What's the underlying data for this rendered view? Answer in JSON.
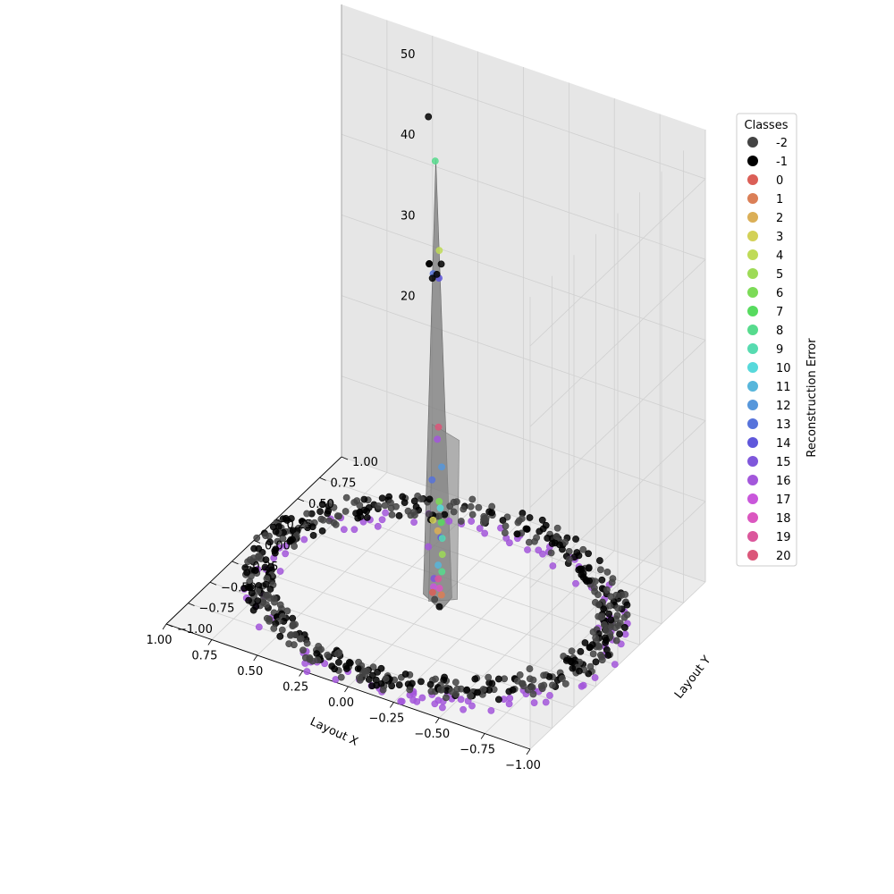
{
  "chart_data": {
    "type": "scatter3d",
    "xlabel": "Layout X",
    "ylabel": "Layout Y",
    "zlabel": "Reconstruction Error",
    "xlim": [
      -1.0,
      1.0
    ],
    "ylim": [
      -1.0,
      1.0
    ],
    "zlim": [
      0,
      60
    ],
    "x_ticks": [
      "−1.00",
      "−0.75",
      "−0.50",
      "−0.25",
      "0.00",
      "0.25",
      "0.50",
      "0.75",
      "1.00"
    ],
    "y_ticks": [
      "−1.00",
      "−0.75",
      "−0.50",
      "−0.25",
      "0.00",
      "0.25",
      "0.50",
      "0.75",
      "1.00"
    ],
    "z_ticks": [
      "20",
      "30",
      "40",
      "50"
    ],
    "grid": true,
    "legend": {
      "title": "Classes",
      "placement": "right",
      "entries": [
        {
          "label": "-2",
          "color": "#444444"
        },
        {
          "label": "-1",
          "color": "#000000"
        },
        {
          "label": "0",
          "color": "#db5f57"
        },
        {
          "label": "1",
          "color": "#db7f57"
        },
        {
          "label": "2",
          "color": "#dbaf57"
        },
        {
          "label": "3",
          "color": "#d3d157"
        },
        {
          "label": "4",
          "color": "#bfdb57"
        },
        {
          "label": "5",
          "color": "#9edb57"
        },
        {
          "label": "6",
          "color": "#7cdb57"
        },
        {
          "label": "7",
          "color": "#57db5f"
        },
        {
          "label": "8",
          "color": "#57db8d"
        },
        {
          "label": "9",
          "color": "#57dbb0"
        },
        {
          "label": "10",
          "color": "#57d9db"
        },
        {
          "label": "11",
          "color": "#57b6db"
        },
        {
          "label": "12",
          "color": "#5797db"
        },
        {
          "label": "13",
          "color": "#5773db"
        },
        {
          "label": "14",
          "color": "#5f57db"
        },
        {
          "label": "15",
          "color": "#7f57db"
        },
        {
          "label": "16",
          "color": "#a357db"
        },
        {
          "label": "17",
          "color": "#c957db"
        },
        {
          "label": "18",
          "color": "#db57c0"
        },
        {
          "label": "19",
          "color": "#db579c"
        },
        {
          "label": "20",
          "color": "#db577a"
        }
      ]
    },
    "ring": {
      "radius": 0.88,
      "z": 0,
      "point_counts": {
        "-2": 300,
        "-1": 260,
        "16": 110
      },
      "description_classes": [
        "-2",
        "-1",
        "16"
      ]
    },
    "center_cluster": {
      "x": 0.0,
      "y": 0.0,
      "points": [
        {
          "z": 55,
          "c": "8"
        },
        {
          "z": 44,
          "c": "4"
        },
        {
          "z": 42,
          "c": "-1"
        },
        {
          "z": 42,
          "c": "-1"
        },
        {
          "z": 42,
          "c": "-1"
        },
        {
          "z": 41,
          "c": "13"
        },
        {
          "z": 40,
          "c": "14"
        },
        {
          "z": 40,
          "c": "-1"
        },
        {
          "z": 41,
          "c": "-1"
        },
        {
          "z": 22,
          "c": "20"
        },
        {
          "z": 20,
          "c": "16"
        },
        {
          "z": 17,
          "c": "12"
        },
        {
          "z": 15,
          "c": "13"
        },
        {
          "z": 13,
          "c": "6"
        },
        {
          "z": 12,
          "c": "10"
        },
        {
          "z": 10,
          "c": "3"
        },
        {
          "z": 10,
          "c": "7"
        },
        {
          "z": 9,
          "c": "2"
        },
        {
          "z": 8,
          "c": "14"
        },
        {
          "z": 8,
          "c": "9"
        },
        {
          "z": 7,
          "c": "16"
        },
        {
          "z": 6,
          "c": "5"
        },
        {
          "z": 5,
          "c": "11"
        },
        {
          "z": 4,
          "c": "8"
        },
        {
          "z": 3,
          "c": "15"
        },
        {
          "z": 3,
          "c": "19"
        },
        {
          "z": 2,
          "c": "18"
        },
        {
          "z": 2,
          "c": "17"
        },
        {
          "z": 1,
          "c": "0"
        },
        {
          "z": 1,
          "c": "1"
        },
        {
          "z": 0,
          "c": "-2"
        },
        {
          "z": 0,
          "c": "-1"
        }
      ]
    },
    "outlier": {
      "x": 0.45,
      "y": 0.85,
      "z": 48,
      "c": "-1"
    }
  }
}
